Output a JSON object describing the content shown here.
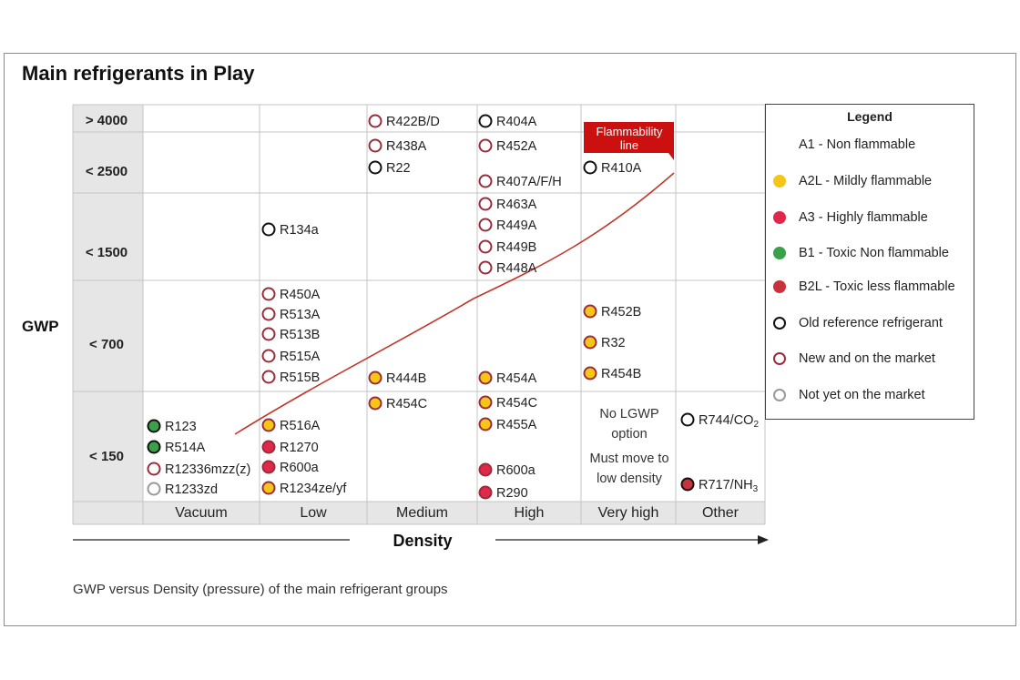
{
  "title": "Main refrigerants in Play",
  "caption": "GWP versus Density (pressure) of the main refrigerant groups",
  "colors": {
    "a2l_fill": "#f5c518",
    "a3_fill": "#e0284a",
    "b1_fill": "#3aa04a",
    "b2l_fill": "#c8323c",
    "new_ring": "#9b2c3a",
    "old_ring": "#111111",
    "future_ring": "#999999",
    "flammability": "#cc1010",
    "header_gray": "#e6e6e6"
  },
  "chart_data": {
    "type": "table",
    "y_axis_label": "GWP",
    "x_axis_label": "Density",
    "gwp_bands": [
      "> 4000",
      "< 2500",
      "< 1500",
      "< 700",
      "< 150"
    ],
    "density_columns": [
      "Vacuum",
      "Low",
      "Medium",
      "High",
      "Very high",
      "Other"
    ],
    "flammability_line_label": "Flammability line",
    "flammability_line_label_line1": "Flammability",
    "flammability_line_label_line2": "line",
    "note_lines": [
      "No LGWP",
      "option",
      "Must move to",
      "low density"
    ],
    "refrigerants": [
      {
        "name": "R123",
        "column": "Vacuum",
        "gwp_band": "< 150",
        "class": "B1"
      },
      {
        "name": "R514A",
        "column": "Vacuum",
        "gwp_band": "< 150",
        "class": "B1"
      },
      {
        "name": "R12336mzz(z)",
        "column": "Vacuum",
        "gwp_band": "< 150",
        "class": "new"
      },
      {
        "name": "R1233zd",
        "column": "Vacuum",
        "gwp_band": "< 150",
        "class": "not-yet"
      },
      {
        "name": "R134a",
        "column": "Low",
        "gwp_band": "< 1500",
        "class": "old"
      },
      {
        "name": "R450A",
        "column": "Low",
        "gwp_band": "< 700",
        "class": "new"
      },
      {
        "name": "R513A",
        "column": "Low",
        "gwp_band": "< 700",
        "class": "new"
      },
      {
        "name": "R513B",
        "column": "Low",
        "gwp_band": "< 700",
        "class": "new"
      },
      {
        "name": "R515A",
        "column": "Low",
        "gwp_band": "< 700",
        "class": "new"
      },
      {
        "name": "R515B",
        "column": "Low",
        "gwp_band": "< 700",
        "class": "new"
      },
      {
        "name": "R516A",
        "column": "Low",
        "gwp_band": "< 150",
        "class": "A2L"
      },
      {
        "name": "R1270",
        "column": "Low",
        "gwp_band": "< 150",
        "class": "A3"
      },
      {
        "name": "R600a",
        "column": "Low",
        "gwp_band": "< 150",
        "class": "A3"
      },
      {
        "name": "R1234ze/yf",
        "column": "Low",
        "gwp_band": "< 150",
        "class": "A2L"
      },
      {
        "name": "R422B/D",
        "column": "Medium",
        "gwp_band": "> 4000",
        "class": "new"
      },
      {
        "name": "R438A",
        "column": "Medium",
        "gwp_band": "< 2500",
        "class": "new"
      },
      {
        "name": "R22",
        "column": "Medium",
        "gwp_band": "< 2500",
        "class": "old"
      },
      {
        "name": "R444B",
        "column": "Medium",
        "gwp_band": "< 700",
        "class": "A2L"
      },
      {
        "name": "R454C",
        "column": "Medium",
        "gwp_band": "< 150",
        "class": "A2L"
      },
      {
        "name": "R404A",
        "column": "High",
        "gwp_band": "> 4000",
        "class": "old"
      },
      {
        "name": "R452A",
        "column": "High",
        "gwp_band": "< 2500",
        "class": "new"
      },
      {
        "name": "R407A/F/H",
        "column": "High",
        "gwp_band": "< 2500",
        "class": "new"
      },
      {
        "name": "R463A",
        "column": "High",
        "gwp_band": "< 1500",
        "class": "new"
      },
      {
        "name": "R449A",
        "column": "High",
        "gwp_band": "< 1500",
        "class": "new"
      },
      {
        "name": "R449B",
        "column": "High",
        "gwp_band": "< 1500",
        "class": "new"
      },
      {
        "name": "R448A",
        "column": "High",
        "gwp_band": "< 1500",
        "class": "new"
      },
      {
        "name": "R454A",
        "column": "High",
        "gwp_band": "< 700",
        "class": "A2L"
      },
      {
        "name": "R454C",
        "column": "High",
        "gwp_band": "< 150",
        "class": "A2L"
      },
      {
        "name": "R455A",
        "column": "High",
        "gwp_band": "< 150",
        "class": "A2L"
      },
      {
        "name": "R600a",
        "column": "High",
        "gwp_band": "< 150",
        "class": "A3"
      },
      {
        "name": "R290",
        "column": "High",
        "gwp_band": "< 150",
        "class": "A3"
      },
      {
        "name": "R410A",
        "column": "Very high",
        "gwp_band": "< 2500",
        "class": "old"
      },
      {
        "name": "R452B",
        "column": "Very high",
        "gwp_band": "< 700",
        "class": "A2L"
      },
      {
        "name": "R32",
        "column": "Very high",
        "gwp_band": "< 700",
        "class": "A2L"
      },
      {
        "name": "R454B",
        "column": "Very high",
        "gwp_band": "< 700",
        "class": "A2L"
      },
      {
        "name": "R744/CO",
        "subscript": "2",
        "column": "Other",
        "gwp_band": "< 150",
        "class": "old"
      },
      {
        "name": "R717/NH",
        "subscript": "3",
        "column": "Other",
        "gwp_band": "< 150",
        "class": "B2L"
      }
    ]
  },
  "legend": {
    "title": "Legend",
    "items": [
      {
        "label": "A1 - Non flammable",
        "class": "A1"
      },
      {
        "label": "A2L - Mildly flammable",
        "class": "A2L"
      },
      {
        "label": "A3 - Highly flammable",
        "class": "A3"
      },
      {
        "label": "B1 - Toxic Non flammable",
        "class": "B1"
      },
      {
        "label": "B2L - Toxic less flammable",
        "class": "B2L"
      },
      {
        "label": "Old reference refrigerant",
        "class": "old"
      },
      {
        "label": "New and on the market",
        "class": "new"
      },
      {
        "label": "Not yet on the market",
        "class": "not-yet"
      }
    ]
  }
}
